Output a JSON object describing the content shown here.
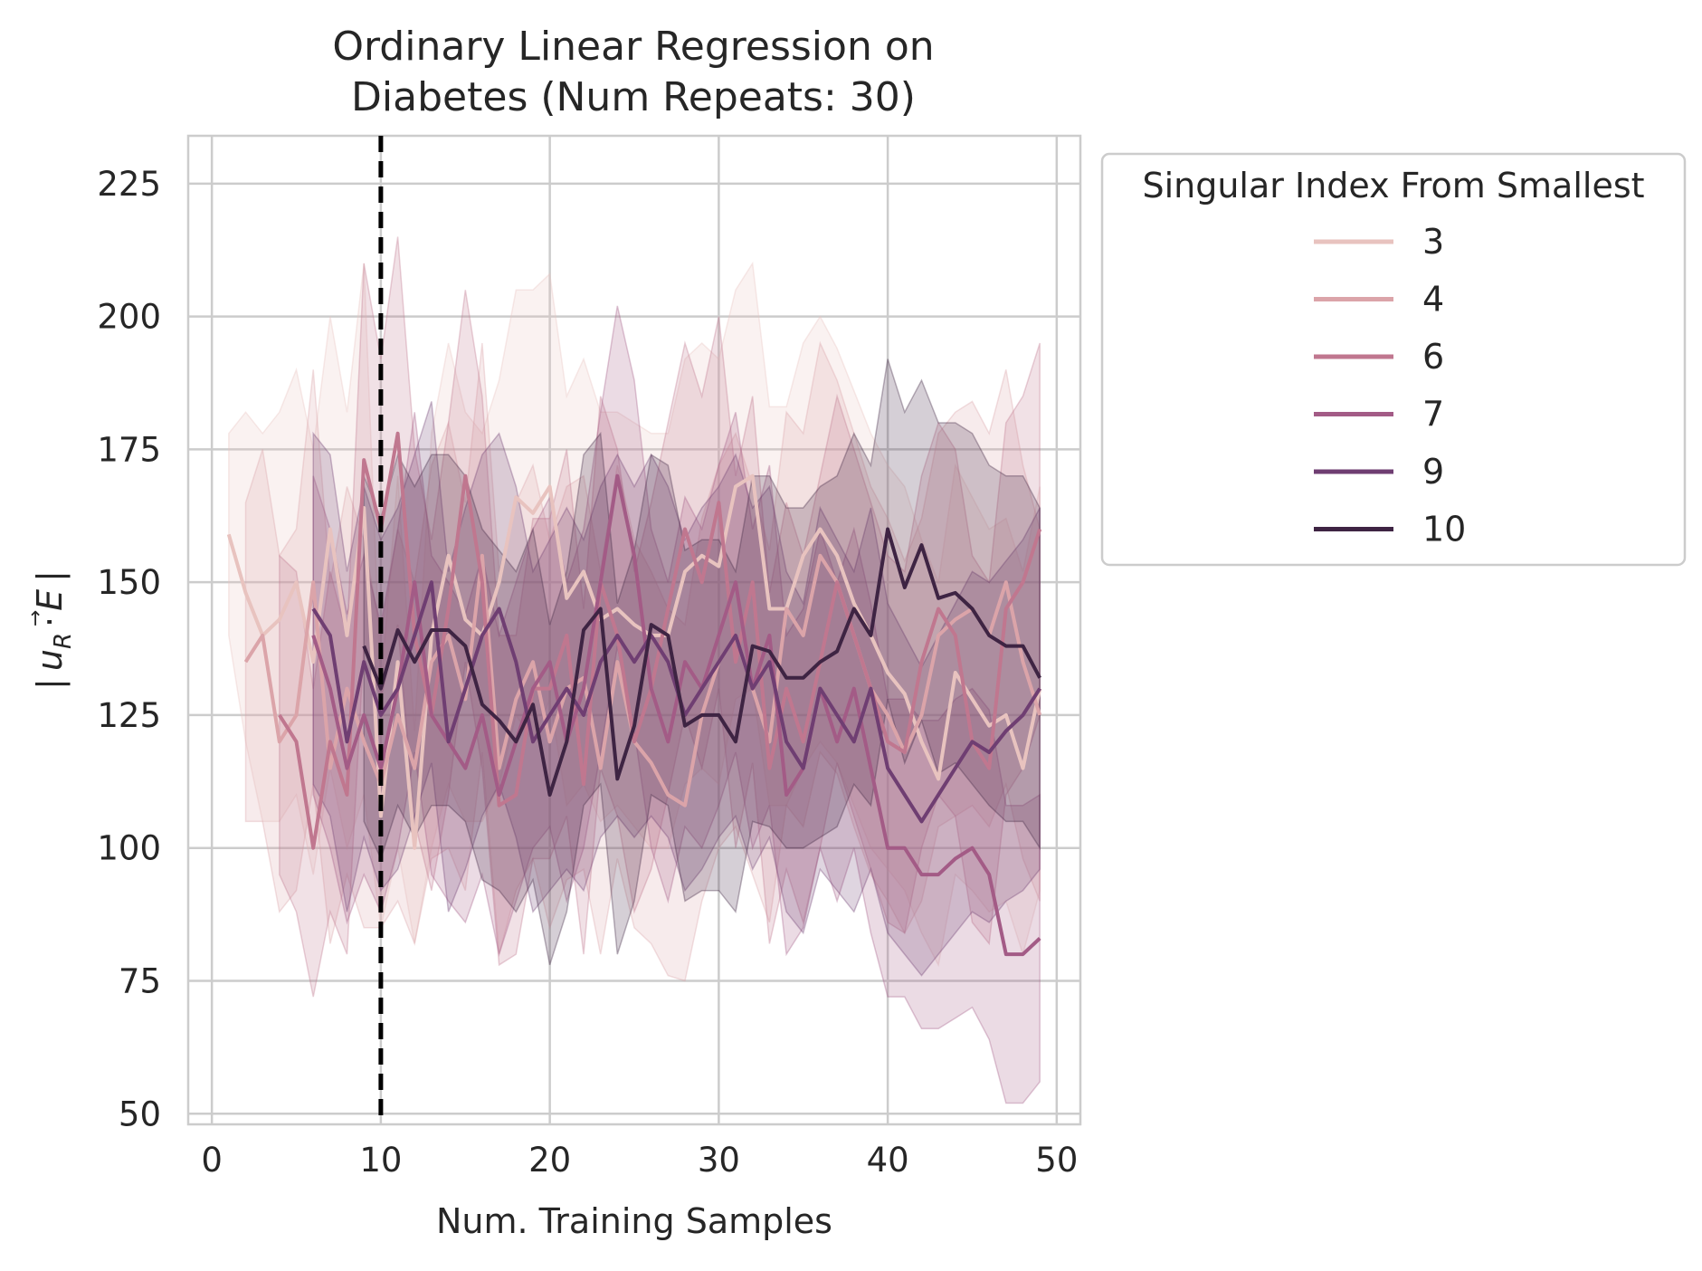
{
  "chart_data": {
    "type": "line",
    "title": [
      "Ordinary Linear Regression on",
      "Diabetes (Num Repeats: 30)"
    ],
    "xlabel": "Num. Training Samples",
    "ylabel": "| u⃗_R · E |",
    "ylabel_parts": {
      "bar": "|",
      "u": "u",
      "sub": "R",
      "dot": "·",
      "e": "E"
    },
    "xlim": [
      -1.4,
      51.4
    ],
    "ylim": [
      48,
      234
    ],
    "xticks": [
      0,
      10,
      20,
      30,
      40,
      50
    ],
    "yticks": [
      50,
      75,
      100,
      125,
      150,
      175,
      200,
      225
    ],
    "grid": true,
    "vline": {
      "x": 10,
      "style": "dashed",
      "color": "#000000"
    },
    "legend": {
      "title": "Singular Index From Smallest",
      "placement": "outside-top-right"
    },
    "series": [
      {
        "name": "3",
        "color": "#e8c3bf",
        "x": [
          1,
          2,
          3,
          4,
          5,
          6,
          7,
          8,
          9,
          10,
          11,
          12,
          13,
          14,
          15,
          16,
          17,
          18,
          19,
          20,
          21,
          22,
          23,
          24,
          25,
          26,
          27,
          28,
          29,
          30,
          31,
          32,
          33,
          34,
          35,
          36,
          37,
          38,
          39,
          40,
          41,
          42,
          43,
          44,
          45,
          46,
          47,
          48,
          49
        ],
        "y": [
          159,
          148,
          140,
          143,
          150,
          135,
          160,
          140,
          164,
          106,
          135,
          100,
          140,
          155,
          143,
          140,
          150,
          166,
          163,
          168,
          147,
          152,
          143,
          145,
          142,
          140,
          140,
          152,
          155,
          153,
          168,
          170,
          145,
          145,
          155,
          160,
          155,
          146,
          140,
          133,
          129,
          120,
          113,
          133,
          128,
          123,
          125,
          115,
          130
        ],
        "lower": [
          140,
          120,
          105,
          105,
          110,
          95,
          115,
          100,
          110,
          85,
          100,
          82,
          100,
          112,
          105,
          105,
          112,
          125,
          120,
          128,
          108,
          112,
          105,
          108,
          104,
          100,
          100,
          112,
          115,
          112,
          128,
          130,
          108,
          108,
          115,
          120,
          116,
          108,
          100,
          96,
          92,
          84,
          78,
          95,
          92,
          88,
          90,
          80,
          92
        ],
        "upper": [
          178,
          182,
          178,
          182,
          190,
          175,
          200,
          182,
          210,
          130,
          170,
          122,
          178,
          195,
          182,
          178,
          188,
          205,
          205,
          208,
          185,
          192,
          182,
          182,
          180,
          178,
          178,
          192,
          195,
          192,
          205,
          210,
          183,
          183,
          195,
          200,
          194,
          186,
          178,
          172,
          168,
          158,
          150,
          172,
          166,
          160,
          162,
          152,
          168
        ]
      },
      {
        "name": "4",
        "color": "#dba4a9",
        "x": [
          2,
          3,
          4,
          5,
          6,
          7,
          8,
          9,
          10,
          11,
          12,
          13,
          14,
          15,
          16,
          17,
          18,
          19,
          20,
          21,
          22,
          23,
          24,
          25,
          26,
          27,
          28,
          29,
          30,
          31,
          32,
          33,
          34,
          35,
          36,
          37,
          38,
          39,
          40,
          41,
          42,
          43,
          44,
          45,
          46,
          47,
          48,
          49
        ],
        "y": [
          135,
          140,
          120,
          125,
          150,
          115,
          130,
          120,
          112,
          125,
          115,
          135,
          140,
          128,
          155,
          115,
          128,
          135,
          120,
          130,
          132,
          115,
          135,
          120,
          116,
          110,
          108,
          125,
          135,
          140,
          130,
          120,
          145,
          140,
          155,
          150,
          140,
          130,
          125,
          118,
          125,
          140,
          143,
          145,
          140,
          150,
          135,
          125
        ],
        "lower": [
          105,
          105,
          88,
          92,
          112,
          82,
          95,
          85,
          85,
          90,
          82,
          98,
          100,
          92,
          118,
          80,
          92,
          98,
          85,
          94,
          96,
          80,
          98,
          85,
          82,
          76,
          75,
          90,
          100,
          104,
          95,
          86,
          108,
          104,
          118,
          114,
          104,
          95,
          90,
          84,
          90,
          104,
          106,
          108,
          104,
          112,
          98,
          90
        ],
        "upper": [
          165,
          175,
          155,
          160,
          190,
          150,
          168,
          158,
          140,
          160,
          150,
          172,
          180,
          165,
          195,
          152,
          165,
          172,
          158,
          168,
          170,
          152,
          172,
          158,
          152,
          145,
          142,
          162,
          172,
          178,
          168,
          156,
          182,
          178,
          195,
          188,
          178,
          168,
          162,
          154,
          162,
          178,
          182,
          184,
          178,
          190,
          172,
          160
        ]
      },
      {
        "name": "6",
        "color": "#c0778f",
        "x": [
          4,
          5,
          6,
          7,
          8,
          9,
          10,
          11,
          12,
          13,
          14,
          15,
          16,
          17,
          18,
          19,
          20,
          21,
          22,
          23,
          24,
          25,
          26,
          27,
          28,
          29,
          30,
          31,
          32,
          33,
          34,
          35,
          36,
          37,
          38,
          39,
          40,
          41,
          42,
          43,
          44,
          45,
          46,
          47,
          48,
          49
        ],
        "y": [
          125,
          120,
          100,
          120,
          110,
          173,
          160,
          178,
          140,
          125,
          145,
          170,
          150,
          108,
          110,
          130,
          130,
          140,
          112,
          150,
          140,
          120,
          130,
          145,
          160,
          150,
          165,
          135,
          150,
          115,
          130,
          120,
          135,
          150,
          140,
          130,
          120,
          118,
          135,
          145,
          140,
          120,
          115,
          145,
          150,
          160
        ],
        "lower": [
          95,
          88,
          72,
          88,
          80,
          138,
          128,
          142,
          105,
          92,
          110,
          135,
          115,
          78,
          80,
          98,
          98,
          106,
          80,
          115,
          106,
          88,
          96,
          110,
          125,
          115,
          130,
          100,
          116,
          82,
          96,
          86,
          100,
          116,
          106,
          96,
          86,
          84,
          100,
          110,
          106,
          86,
          82,
          110,
          115,
          125
        ],
        "upper": [
          155,
          152,
          130,
          152,
          140,
          210,
          192,
          215,
          175,
          158,
          180,
          205,
          185,
          140,
          140,
          162,
          162,
          175,
          145,
          185,
          175,
          152,
          165,
          180,
          195,
          185,
          200,
          170,
          185,
          148,
          165,
          155,
          170,
          185,
          175,
          165,
          155,
          152,
          170,
          180,
          175,
          155,
          150,
          180,
          185,
          195
        ]
      },
      {
        "name": "7",
        "color": "#a35b86",
        "x": [
          6,
          7,
          8,
          9,
          10,
          11,
          12,
          13,
          14,
          15,
          16,
          17,
          18,
          19,
          20,
          21,
          22,
          23,
          24,
          25,
          26,
          27,
          28,
          29,
          30,
          31,
          32,
          33,
          34,
          35,
          36,
          37,
          38,
          39,
          40,
          41,
          42,
          43,
          44,
          45,
          46,
          47,
          48,
          49
        ],
        "y": [
          140,
          130,
          115,
          125,
          115,
          130,
          150,
          125,
          120,
          115,
          125,
          110,
          120,
          130,
          135,
          120,
          130,
          150,
          170,
          155,
          130,
          120,
          135,
          130,
          140,
          150,
          130,
          140,
          110,
          115,
          130,
          120,
          130,
          115,
          100,
          100,
          95,
          95,
          98,
          100,
          95,
          80,
          80,
          83
        ],
        "lower": [
          110,
          100,
          86,
          95,
          88,
          100,
          118,
          95,
          90,
          86,
          95,
          80,
          90,
          100,
          104,
          90,
          100,
          118,
          138,
          122,
          100,
          90,
          104,
          100,
          108,
          118,
          100,
          108,
          80,
          85,
          100,
          90,
          100,
          84,
          72,
          72,
          66,
          66,
          68,
          70,
          64,
          52,
          52,
          56
        ],
        "upper": [
          170,
          160,
          144,
          155,
          142,
          160,
          182,
          155,
          150,
          144,
          155,
          140,
          150,
          160,
          166,
          150,
          160,
          182,
          202,
          188,
          160,
          150,
          166,
          160,
          172,
          182,
          160,
          172,
          140,
          145,
          160,
          150,
          160,
          146,
          128,
          128,
          124,
          124,
          128,
          130,
          126,
          108,
          108,
          110
        ]
      },
      {
        "name": "9",
        "color": "#6f3e72",
        "x": [
          6,
          7,
          8,
          9,
          10,
          11,
          12,
          13,
          14,
          15,
          16,
          17,
          18,
          19,
          20,
          21,
          22,
          23,
          24,
          25,
          26,
          27,
          28,
          29,
          30,
          31,
          32,
          33,
          34,
          35,
          36,
          37,
          38,
          39,
          40,
          41,
          42,
          43,
          44,
          45,
          46,
          47,
          48,
          49
        ],
        "y": [
          145,
          140,
          120,
          135,
          125,
          130,
          140,
          150,
          120,
          130,
          140,
          145,
          135,
          120,
          125,
          130,
          125,
          135,
          140,
          135,
          140,
          135,
          125,
          130,
          135,
          140,
          130,
          135,
          120,
          115,
          130,
          125,
          120,
          130,
          115,
          110,
          105,
          110,
          115,
          120,
          118,
          122,
          125,
          130
        ],
        "lower": [
          112,
          106,
          88,
          102,
          92,
          96,
          106,
          116,
          88,
          96,
          106,
          112,
          102,
          88,
          92,
          96,
          92,
          102,
          106,
          102,
          106,
          102,
          92,
          96,
          102,
          106,
          96,
          102,
          88,
          84,
          96,
          92,
          88,
          96,
          84,
          80,
          76,
          80,
          84,
          88,
          86,
          90,
          92,
          96
        ],
        "upper": [
          178,
          174,
          152,
          168,
          158,
          164,
          174,
          184,
          152,
          164,
          174,
          178,
          168,
          152,
          158,
          164,
          158,
          168,
          174,
          168,
          174,
          168,
          158,
          164,
          168,
          174,
          164,
          168,
          152,
          146,
          164,
          158,
          152,
          164,
          146,
          140,
          134,
          140,
          146,
          152,
          150,
          154,
          158,
          164
        ]
      },
      {
        "name": "10",
        "color": "#3e2443",
        "x": [
          9,
          10,
          11,
          12,
          13,
          14,
          15,
          16,
          17,
          18,
          19,
          20,
          21,
          22,
          23,
          24,
          25,
          26,
          27,
          28,
          29,
          30,
          31,
          32,
          33,
          34,
          35,
          36,
          37,
          38,
          39,
          40,
          41,
          42,
          43,
          44,
          45,
          46,
          47,
          48,
          49
        ],
        "y": [
          138,
          130,
          141,
          135,
          141,
          141,
          138,
          127,
          124,
          120,
          127,
          110,
          120,
          141,
          145,
          113,
          123,
          142,
          140,
          123,
          125,
          125,
          120,
          138,
          137,
          132,
          132,
          135,
          137,
          145,
          140,
          160,
          149,
          157,
          147,
          148,
          145,
          140,
          138,
          138,
          132
        ],
        "lower": [
          105,
          98,
          108,
          102,
          108,
          108,
          105,
          94,
          92,
          88,
          94,
          78,
          88,
          108,
          112,
          80,
          90,
          110,
          108,
          90,
          92,
          92,
          88,
          105,
          104,
          100,
          100,
          102,
          104,
          112,
          108,
          128,
          116,
          124,
          114,
          116,
          112,
          108,
          105,
          105,
          100
        ],
        "upper": [
          170,
          162,
          174,
          168,
          174,
          174,
          170,
          160,
          156,
          152,
          160,
          142,
          152,
          174,
          178,
          146,
          156,
          174,
          172,
          156,
          158,
          158,
          152,
          170,
          170,
          164,
          164,
          168,
          170,
          178,
          172,
          192,
          182,
          188,
          180,
          180,
          178,
          172,
          170,
          170,
          164
        ]
      }
    ]
  }
}
